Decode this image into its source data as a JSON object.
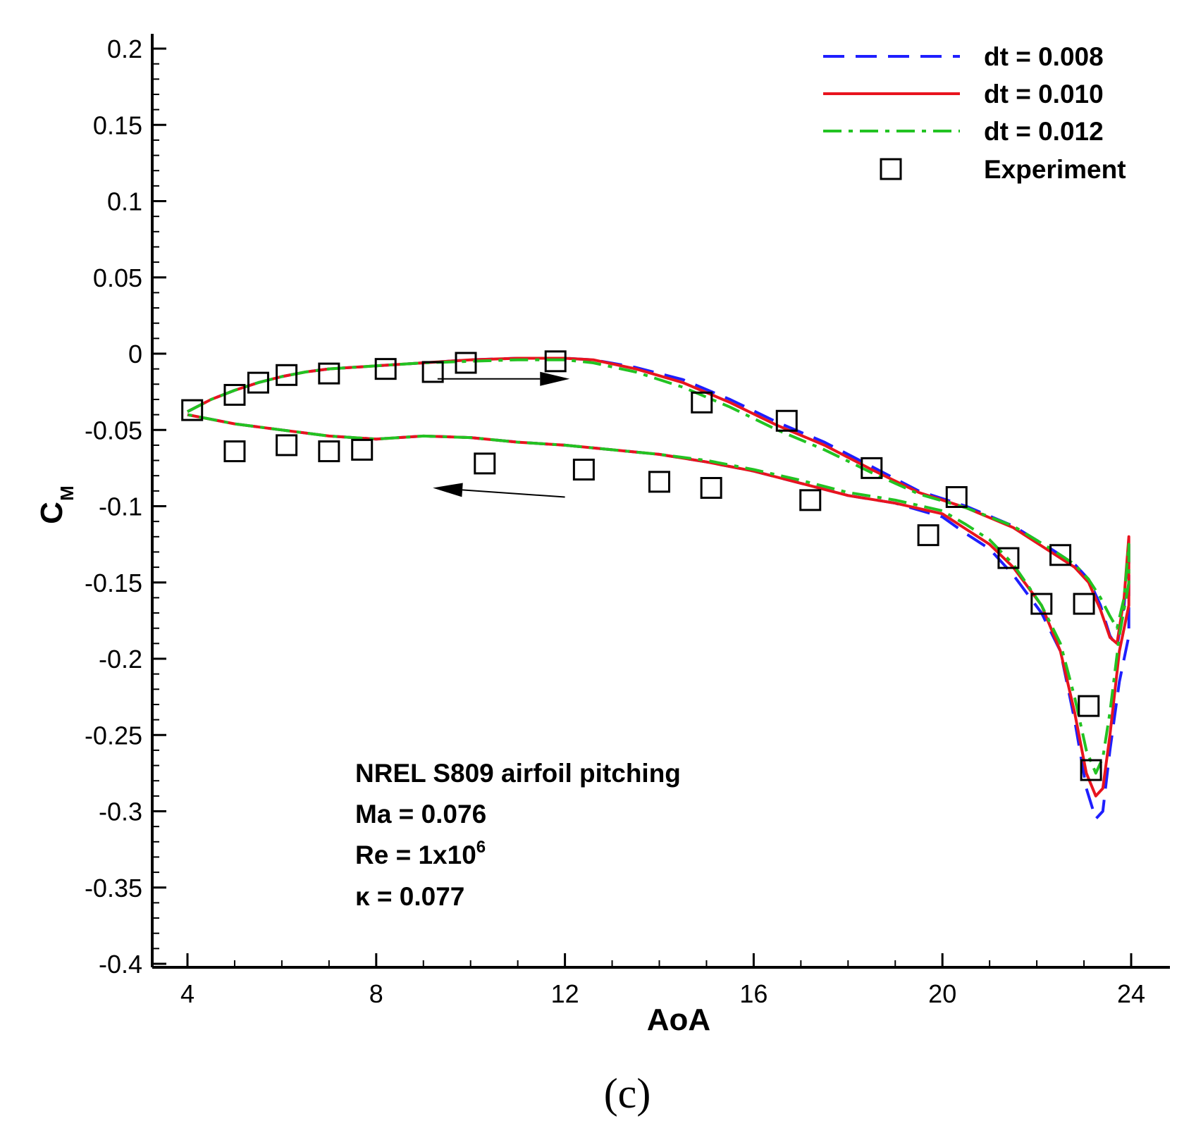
{
  "chart_data": {
    "type": "line",
    "title": "",
    "xlabel": "AoA",
    "ylabel_main": "C",
    "ylabel_sub": "M",
    "xlim": [
      3.2,
      24.8
    ],
    "ylim": [
      -0.4,
      0.21
    ],
    "x_ticks": [
      4,
      8,
      12,
      16,
      20,
      24
    ],
    "x_tick_labels": [
      "4",
      "8",
      "12",
      "16",
      "20",
      "24"
    ],
    "y_ticks": [
      0.2,
      0.15,
      0.1,
      0.05,
      0,
      -0.05,
      -0.1,
      -0.15,
      -0.2,
      -0.25,
      -0.3,
      -0.35,
      -0.4
    ],
    "y_tick_labels": [
      "0.2",
      "0.15",
      "0.1",
      "0.05",
      "0",
      "-0.05",
      "-0.1",
      "-0.15",
      "-0.2",
      "-0.25",
      "-0.3",
      "-0.35",
      "-0.4"
    ],
    "grid": false,
    "legend_position": "top-right",
    "series": [
      {
        "name": "dt = 0.008",
        "color": "#1f1fff",
        "style": "dashed",
        "points": [
          [
            4.0,
            -0.038
          ],
          [
            4.5,
            -0.03
          ],
          [
            5.0,
            -0.024
          ],
          [
            5.5,
            -0.019
          ],
          [
            6.0,
            -0.015
          ],
          [
            6.5,
            -0.012
          ],
          [
            7.0,
            -0.01
          ],
          [
            8.0,
            -0.008
          ],
          [
            9.0,
            -0.006
          ],
          [
            10.0,
            -0.004
          ],
          [
            11.0,
            -0.003
          ],
          [
            12.0,
            -0.003
          ],
          [
            12.6,
            -0.004
          ],
          [
            13.5,
            -0.009
          ],
          [
            14.5,
            -0.017
          ],
          [
            15.5,
            -0.03
          ],
          [
            16.5,
            -0.045
          ],
          [
            17.5,
            -0.058
          ],
          [
            18.5,
            -0.074
          ],
          [
            19.5,
            -0.09
          ],
          [
            20.5,
            -0.1
          ],
          [
            21.5,
            -0.113
          ],
          [
            22.3,
            -0.128
          ],
          [
            22.8,
            -0.138
          ],
          [
            23.1,
            -0.148
          ],
          [
            23.35,
            -0.165
          ],
          [
            23.55,
            -0.185
          ],
          [
            23.7,
            -0.192
          ],
          [
            23.85,
            -0.165
          ],
          [
            23.95,
            -0.125
          ],
          [
            23.95,
            -0.185
          ],
          [
            23.75,
            -0.215
          ],
          [
            23.55,
            -0.26
          ],
          [
            23.4,
            -0.3
          ],
          [
            23.25,
            -0.305
          ],
          [
            23.05,
            -0.285
          ],
          [
            22.8,
            -0.24
          ],
          [
            22.5,
            -0.195
          ],
          [
            22.1,
            -0.17
          ],
          [
            21.5,
            -0.145
          ],
          [
            21.0,
            -0.128
          ],
          [
            20.5,
            -0.118
          ],
          [
            20.0,
            -0.107
          ],
          [
            19.0,
            -0.098
          ],
          [
            18.0,
            -0.093
          ],
          [
            17.0,
            -0.085
          ],
          [
            16.0,
            -0.077
          ],
          [
            15.0,
            -0.071
          ],
          [
            14.0,
            -0.066
          ],
          [
            13.0,
            -0.063
          ],
          [
            12.0,
            -0.06
          ],
          [
            11.0,
            -0.058
          ],
          [
            10.0,
            -0.055
          ],
          [
            9.0,
            -0.054
          ],
          [
            8.0,
            -0.056
          ],
          [
            7.0,
            -0.054
          ],
          [
            6.0,
            -0.05
          ],
          [
            5.0,
            -0.046
          ],
          [
            4.0,
            -0.04
          ]
        ]
      },
      {
        "name": "dt = 0.010",
        "color": "#e8141e",
        "style": "solid",
        "points": [
          [
            4.0,
            -0.038
          ],
          [
            4.5,
            -0.03
          ],
          [
            5.0,
            -0.024
          ],
          [
            5.5,
            -0.019
          ],
          [
            6.0,
            -0.015
          ],
          [
            6.5,
            -0.012
          ],
          [
            7.0,
            -0.01
          ],
          [
            8.0,
            -0.008
          ],
          [
            9.0,
            -0.006
          ],
          [
            10.0,
            -0.004
          ],
          [
            11.0,
            -0.003
          ],
          [
            12.0,
            -0.003
          ],
          [
            12.6,
            -0.004
          ],
          [
            13.5,
            -0.01
          ],
          [
            14.5,
            -0.019
          ],
          [
            15.5,
            -0.032
          ],
          [
            16.5,
            -0.047
          ],
          [
            17.5,
            -0.06
          ],
          [
            18.5,
            -0.076
          ],
          [
            19.5,
            -0.091
          ],
          [
            20.5,
            -0.101
          ],
          [
            21.5,
            -0.114
          ],
          [
            22.3,
            -0.13
          ],
          [
            22.8,
            -0.14
          ],
          [
            23.1,
            -0.15
          ],
          [
            23.35,
            -0.168
          ],
          [
            23.55,
            -0.186
          ],
          [
            23.7,
            -0.19
          ],
          [
            23.85,
            -0.16
          ],
          [
            23.95,
            -0.12
          ],
          [
            23.95,
            -0.165
          ],
          [
            23.75,
            -0.195
          ],
          [
            23.55,
            -0.25
          ],
          [
            23.4,
            -0.285
          ],
          [
            23.25,
            -0.29
          ],
          [
            23.05,
            -0.275
          ],
          [
            22.8,
            -0.235
          ],
          [
            22.5,
            -0.195
          ],
          [
            22.1,
            -0.165
          ],
          [
            21.5,
            -0.14
          ],
          [
            21.0,
            -0.125
          ],
          [
            20.5,
            -0.115
          ],
          [
            20.0,
            -0.105
          ],
          [
            19.0,
            -0.098
          ],
          [
            18.0,
            -0.093
          ],
          [
            17.0,
            -0.085
          ],
          [
            16.0,
            -0.077
          ],
          [
            15.0,
            -0.071
          ],
          [
            14.0,
            -0.066
          ],
          [
            13.0,
            -0.063
          ],
          [
            12.0,
            -0.06
          ],
          [
            11.0,
            -0.058
          ],
          [
            10.0,
            -0.055
          ],
          [
            9.0,
            -0.054
          ],
          [
            8.0,
            -0.056
          ],
          [
            7.0,
            -0.054
          ],
          [
            6.0,
            -0.05
          ],
          [
            5.0,
            -0.046
          ],
          [
            4.0,
            -0.04
          ]
        ]
      },
      {
        "name": "dt = 0.012",
        "color": "#22c322",
        "style": "dashdot",
        "points": [
          [
            4.0,
            -0.038
          ],
          [
            4.5,
            -0.03
          ],
          [
            5.0,
            -0.024
          ],
          [
            5.5,
            -0.019
          ],
          [
            6.0,
            -0.015
          ],
          [
            6.5,
            -0.012
          ],
          [
            7.0,
            -0.01
          ],
          [
            8.0,
            -0.008
          ],
          [
            9.0,
            -0.006
          ],
          [
            10.0,
            -0.005
          ],
          [
            11.0,
            -0.004
          ],
          [
            12.0,
            -0.004
          ],
          [
            12.6,
            -0.006
          ],
          [
            13.5,
            -0.012
          ],
          [
            14.5,
            -0.022
          ],
          [
            15.5,
            -0.035
          ],
          [
            16.5,
            -0.05
          ],
          [
            17.5,
            -0.063
          ],
          [
            18.5,
            -0.078
          ],
          [
            19.5,
            -0.092
          ],
          [
            20.5,
            -0.101
          ],
          [
            21.5,
            -0.113
          ],
          [
            22.3,
            -0.128
          ],
          [
            22.8,
            -0.138
          ],
          [
            23.1,
            -0.148
          ],
          [
            23.35,
            -0.16
          ],
          [
            23.55,
            -0.172
          ],
          [
            23.7,
            -0.18
          ],
          [
            23.85,
            -0.16
          ],
          [
            23.95,
            -0.125
          ],
          [
            23.95,
            -0.15
          ],
          [
            23.75,
            -0.185
          ],
          [
            23.55,
            -0.235
          ],
          [
            23.4,
            -0.265
          ],
          [
            23.25,
            -0.275
          ],
          [
            23.05,
            -0.26
          ],
          [
            22.8,
            -0.225
          ],
          [
            22.5,
            -0.19
          ],
          [
            22.1,
            -0.165
          ],
          [
            21.5,
            -0.138
          ],
          [
            21.0,
            -0.122
          ],
          [
            20.5,
            -0.112
          ],
          [
            20.0,
            -0.103
          ],
          [
            19.0,
            -0.096
          ],
          [
            18.0,
            -0.091
          ],
          [
            17.0,
            -0.083
          ],
          [
            16.0,
            -0.076
          ],
          [
            15.0,
            -0.07
          ],
          [
            14.0,
            -0.066
          ],
          [
            13.0,
            -0.063
          ],
          [
            12.0,
            -0.06
          ],
          [
            11.0,
            -0.058
          ],
          [
            10.0,
            -0.055
          ],
          [
            9.0,
            -0.054
          ],
          [
            8.0,
            -0.056
          ],
          [
            7.0,
            -0.054
          ],
          [
            6.0,
            -0.05
          ],
          [
            5.0,
            -0.046
          ],
          [
            4.0,
            -0.04
          ]
        ]
      }
    ],
    "experiment": {
      "name": "Experiment",
      "marker": "open-square",
      "points": [
        [
          4.1,
          -0.037
        ],
        [
          5.0,
          -0.027
        ],
        [
          5.5,
          -0.019
        ],
        [
          6.1,
          -0.014
        ],
        [
          7.0,
          -0.013
        ],
        [
          8.2,
          -0.01
        ],
        [
          9.2,
          -0.012
        ],
        [
          9.9,
          -0.006
        ],
        [
          11.8,
          -0.005
        ],
        [
          14.9,
          -0.032
        ],
        [
          16.7,
          -0.044
        ],
        [
          18.5,
          -0.075
        ],
        [
          20.3,
          -0.094
        ],
        [
          22.5,
          -0.132
        ],
        [
          5.0,
          -0.064
        ],
        [
          6.1,
          -0.06
        ],
        [
          7.0,
          -0.064
        ],
        [
          7.7,
          -0.063
        ],
        [
          10.3,
          -0.072
        ],
        [
          12.4,
          -0.076
        ],
        [
          14.0,
          -0.084
        ],
        [
          15.1,
          -0.088
        ],
        [
          17.2,
          -0.096
        ],
        [
          19.7,
          -0.119
        ],
        [
          21.4,
          -0.134
        ],
        [
          22.1,
          -0.164
        ],
        [
          23.0,
          -0.164
        ],
        [
          23.1,
          -0.231
        ],
        [
          23.15,
          -0.273
        ]
      ]
    },
    "arrows": [
      {
        "direction": "right",
        "from": [
          9.3,
          -0.0165
        ],
        "to": [
          12.1,
          -0.0165
        ]
      },
      {
        "direction": "left",
        "from": [
          12.0,
          -0.094
        ],
        "to": [
          9.2,
          -0.088
        ]
      }
    ],
    "annotations": [
      {
        "text": "NREL S809 airfoil pitching"
      },
      {
        "text": "Ma = 0.076"
      },
      {
        "text_main": "Re = 1x10",
        "superscript": "6"
      },
      {
        "text": "κ = 0.077"
      }
    ],
    "panel_label": "(c)"
  }
}
